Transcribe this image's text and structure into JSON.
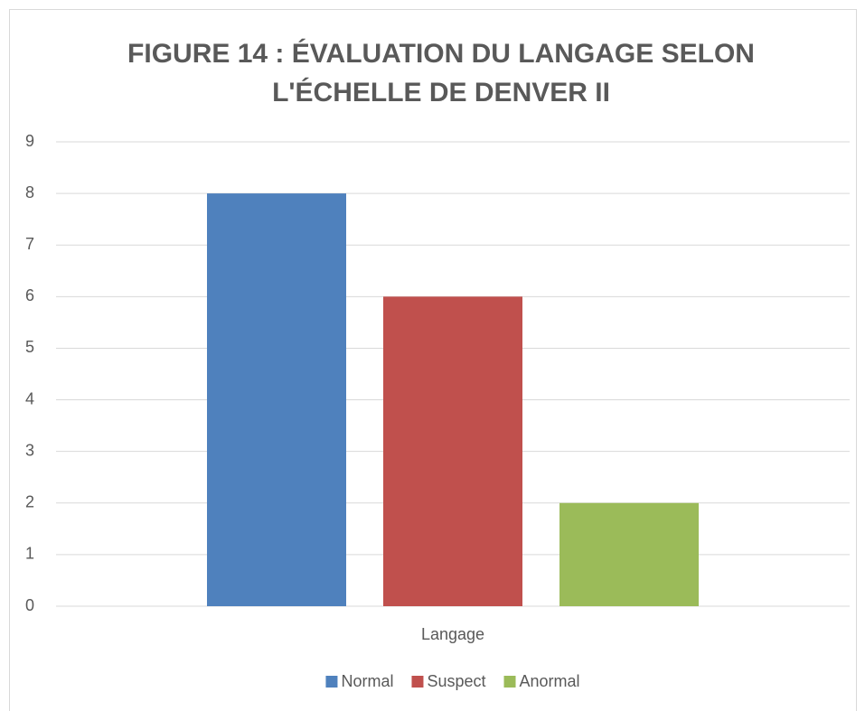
{
  "chart_data": {
    "type": "bar",
    "title": "FIGURE 14 : ÉVALUATION DU LANGAGE SELON L'ÉCHELLE DE DENVER II",
    "categories": [
      "Langage"
    ],
    "series": [
      {
        "name": "Normal",
        "color": "#4f81bd",
        "values": [
          8
        ]
      },
      {
        "name": "Suspect",
        "color": "#c0504d",
        "values": [
          6
        ]
      },
      {
        "name": "Anormal",
        "color": "#9bbb59",
        "values": [
          2
        ]
      }
    ],
    "ylim": [
      0,
      9
    ],
    "yticks": [
      0,
      1,
      2,
      3,
      4,
      5,
      6,
      7,
      8,
      9
    ],
    "grid": true,
    "legend": "bottom"
  }
}
